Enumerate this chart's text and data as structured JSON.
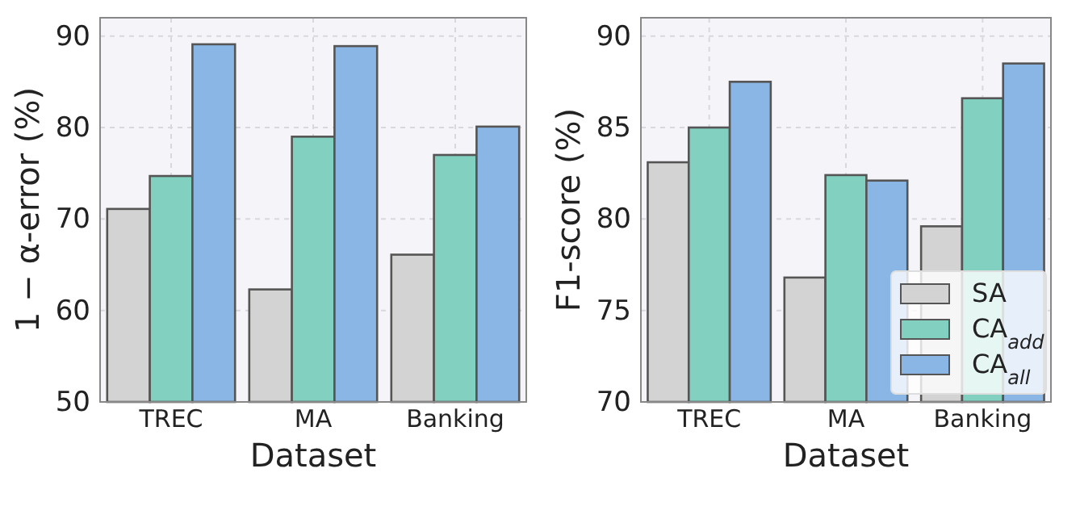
{
  "chart_data": [
    {
      "type": "bar",
      "xlabel": "Dataset",
      "ylabel": "1 − α-error (%)",
      "categories": [
        "TREC",
        "MA",
        "Banking"
      ],
      "series": [
        {
          "color": "#d3d3d3",
          "values": [
            71.1,
            62.3,
            66.1
          ]
        },
        {
          "color": "#82d1c0",
          "values": [
            74.7,
            79.0,
            77.0
          ]
        },
        {
          "color": "#89b6e5",
          "values": [
            89.1,
            88.9,
            80.1
          ]
        }
      ],
      "ylim": [
        50,
        92
      ],
      "yticks": [
        50,
        60,
        70,
        80,
        90
      ],
      "grid": true,
      "legend": false
    },
    {
      "type": "bar",
      "xlabel": "Dataset",
      "ylabel": "F1-score (%)",
      "categories": [
        "TREC",
        "MA",
        "Banking"
      ],
      "series": [
        {
          "name": "SA",
          "color": "#d3d3d3",
          "values": [
            83.1,
            76.8,
            79.6
          ]
        },
        {
          "name": "CA$_{add}$",
          "color": "#82d1c0",
          "values": [
            85.0,
            82.4,
            86.6
          ]
        },
        {
          "name": "CA$_{all}$",
          "color": "#89b6e5",
          "values": [
            87.5,
            82.1,
            88.5
          ]
        }
      ],
      "ylim": [
        70,
        91
      ],
      "yticks": [
        70,
        75,
        80,
        85,
        90
      ],
      "grid": true,
      "legend": "bottom right"
    }
  ]
}
